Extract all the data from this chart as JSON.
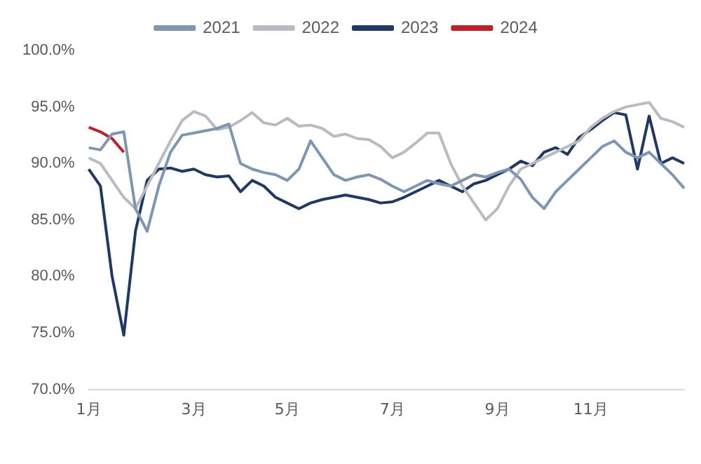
{
  "chart_data": {
    "type": "line",
    "categories": [
      "1月",
      null,
      null,
      null,
      null,
      null,
      null,
      null,
      null,
      "3月",
      null,
      null,
      null,
      null,
      null,
      null,
      null,
      "5月",
      null,
      null,
      null,
      null,
      null,
      null,
      null,
      null,
      "7月",
      null,
      null,
      null,
      null,
      null,
      null,
      null,
      null,
      "9月",
      null,
      null,
      null,
      null,
      null,
      null,
      null,
      "11月",
      null,
      null,
      null,
      null,
      null,
      null,
      null,
      null
    ],
    "series": [
      {
        "name": "2021",
        "color": "#7f96b2",
        "values": [
          91.4,
          91.2,
          92.6,
          92.8,
          86,
          84,
          88,
          91,
          92.5,
          92.7,
          92.9,
          93.1,
          93.5,
          90,
          89.5,
          89.2,
          89.0,
          88.5,
          89.5,
          92.0,
          90.5,
          89.0,
          88.5,
          88.8,
          89.0,
          88.6,
          88.0,
          87.5,
          88.0,
          88.5,
          88.2,
          88.0,
          88.5,
          89.0,
          88.8,
          89.2,
          89.5,
          88.6,
          87.0,
          86.0,
          87.5,
          88.5,
          89.5,
          90.5,
          91.5,
          92.0,
          91.0,
          90.5,
          91.0,
          90.0,
          89.0,
          87.8
        ]
      },
      {
        "name": "2022",
        "color": "#b8bcc2",
        "values": [
          90.5,
          90.0,
          88.5,
          87.0,
          86.0,
          88.0,
          90.0,
          92.0,
          93.8,
          94.6,
          94.2,
          93.0,
          93.2,
          93.8,
          94.5,
          93.6,
          93.4,
          94.0,
          93.3,
          93.4,
          93.1,
          92.4,
          92.6,
          92.2,
          92.1,
          91.5,
          90.5,
          91.0,
          91.8,
          92.7,
          92.7,
          90.0,
          88.0,
          86.5,
          85.0,
          86.0,
          88.0,
          89.5,
          90.0,
          90.5,
          91.0,
          91.5,
          92.0,
          93.2,
          94.0,
          94.6,
          95.0,
          95.2,
          95.4,
          94.0,
          93.7,
          93.2
        ]
      },
      {
        "name": "2023",
        "color": "#1f3864",
        "values": [
          89.5,
          88.0,
          80.0,
          74.8,
          84.0,
          88.5,
          89.5,
          89.6,
          89.3,
          89.5,
          89.0,
          88.8,
          88.9,
          87.5,
          88.5,
          88.0,
          87.0,
          86.5,
          86.0,
          86.5,
          86.8,
          87.0,
          87.2,
          87.0,
          86.8,
          86.5,
          86.6,
          87.0,
          87.5,
          88.0,
          88.5,
          88.0,
          87.5,
          88.2,
          88.5,
          89.0,
          89.5,
          90.2,
          89.8,
          91.0,
          91.4,
          90.8,
          92.3,
          93.0,
          93.8,
          94.5,
          94.3,
          89.5,
          94.2,
          90.0,
          90.5,
          90.0
        ]
      },
      {
        "name": "2024",
        "color": "#c0202a",
        "values": [
          93.2,
          92.8,
          92.2,
          91.0,
          null,
          null,
          null,
          null,
          null,
          null,
          null,
          null,
          null,
          null,
          null,
          null,
          null,
          null,
          null,
          null,
          null,
          null,
          null,
          null,
          null,
          null,
          null,
          null,
          null,
          null,
          null,
          null,
          null,
          null,
          null,
          null,
          null,
          null,
          null,
          null,
          null,
          null,
          null,
          null,
          null,
          null,
          null,
          null,
          null,
          null,
          null,
          null
        ]
      }
    ],
    "ylim": [
      70,
      100
    ],
    "yticks": [
      {
        "value": 70,
        "label": "70.0%"
      },
      {
        "value": 75,
        "label": "75.0%"
      },
      {
        "value": 80,
        "label": "80.0%"
      },
      {
        "value": 85,
        "label": "85.0%"
      },
      {
        "value": 90,
        "label": "90.0%"
      },
      {
        "value": 95,
        "label": "95.0%"
      },
      {
        "value": 100,
        "label": "100.0%"
      }
    ],
    "legend": "top",
    "marker": "none",
    "line_style": "solid"
  }
}
